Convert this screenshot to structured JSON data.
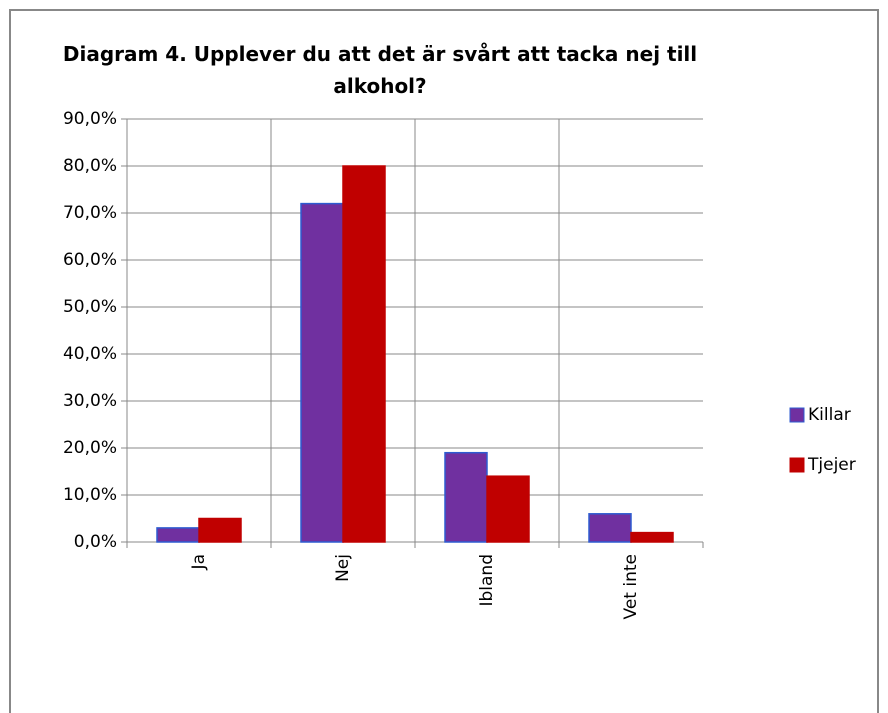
{
  "chart_data": {
    "type": "bar",
    "title": "Diagram 4. Upplever du att det är svårt att tacka nej till alkohol?",
    "categories": [
      "Ja",
      "Nej",
      "Ibland",
      "Vet inte"
    ],
    "series": [
      {
        "name": "Killar",
        "color": "#7030a0",
        "values": [
          3,
          72,
          19,
          6
        ]
      },
      {
        "name": "Tjejer",
        "color": "#c00000",
        "values": [
          5,
          80,
          14,
          2
        ]
      }
    ],
    "ylim": [
      0,
      90
    ],
    "yticks": [
      {
        "value": 0,
        "label": "0,0%"
      },
      {
        "value": 10,
        "label": "10,0%"
      },
      {
        "value": 20,
        "label": "20,0%"
      },
      {
        "value": 30,
        "label": "30,0%"
      },
      {
        "value": 40,
        "label": "40,0%"
      },
      {
        "value": 50,
        "label": "50,0%"
      },
      {
        "value": 60,
        "label": "60,0%"
      },
      {
        "value": 70,
        "label": "70,0%"
      },
      {
        "value": 80,
        "label": "80,0%"
      },
      {
        "value": 90,
        "label": "90,0%"
      }
    ],
    "grid": true,
    "legend": "right"
  }
}
